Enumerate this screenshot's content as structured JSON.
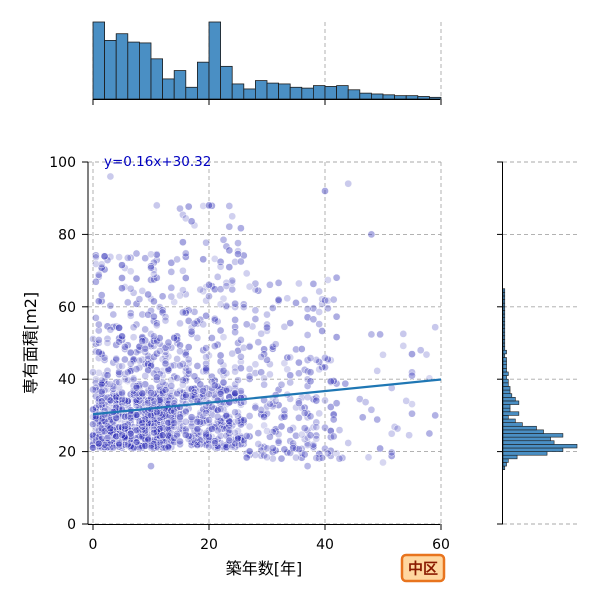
{
  "chart_data": {
    "type": "scatter",
    "xlabel": "築年数[年]",
    "ylabel": "専有面積[m2]",
    "xlim": [
      0,
      60
    ],
    "ylim": [
      0,
      100
    ],
    "xticks": [
      "0",
      "20",
      "40",
      "60"
    ],
    "yticks": [
      "0",
      "20",
      "40",
      "60",
      "80",
      "100"
    ],
    "grid": true,
    "regression": {
      "label": "y=0.16x+30.32",
      "slope": 0.16,
      "intercept": 30.32
    },
    "region_badge": "中区",
    "colors": {
      "points": "#2b2bb5",
      "hist": "#4a8fc4",
      "regression_line": "#1f77b4",
      "badge_fill": "#ffd7a0",
      "badge_stroke": "#e8741e"
    },
    "top_histogram": {
      "axis": "築年数[年]",
      "bin_width": 2,
      "counts": [
        92,
        70,
        78,
        68,
        67,
        48,
        24,
        34,
        14,
        44,
        92,
        39,
        18,
        12,
        22,
        19,
        18,
        14,
        13,
        16,
        15,
        16,
        11,
        7,
        6,
        5,
        4,
        4,
        3,
        2
      ]
    },
    "right_histogram": {
      "axis": "専有面積[m2]",
      "bin_width": 1,
      "bins_from": 15,
      "counts": [
        1,
        2,
        3,
        8,
        25,
        34,
        42,
        29,
        27,
        34,
        23,
        19,
        11,
        7,
        3,
        9,
        4,
        4,
        9,
        7,
        5,
        4,
        4,
        3,
        3,
        2,
        3,
        2,
        2,
        2,
        2,
        1,
        2,
        1,
        1,
        1,
        1,
        1,
        1,
        1,
        1,
        1,
        1,
        1,
        1,
        1,
        1,
        1,
        1,
        1
      ]
    },
    "scatter_clusters": [
      {
        "x": [
          0,
          14
        ],
        "y": [
          21,
          36
        ],
        "n": 520
      },
      {
        "x": [
          0,
          14
        ],
        "y": [
          36,
          50
        ],
        "n": 150
      },
      {
        "x": [
          0,
          14
        ],
        "y": [
          50,
          75
        ],
        "n": 110
      },
      {
        "x": [
          14,
          26
        ],
        "y": [
          21,
          38
        ],
        "n": 260
      },
      {
        "x": [
          14,
          26
        ],
        "y": [
          38,
          60
        ],
        "n": 90
      },
      {
        "x": [
          14,
          26
        ],
        "y": [
          60,
          88
        ],
        "n": 55
      },
      {
        "x": [
          26,
          42
        ],
        "y": [
          18,
          45
        ],
        "n": 160
      },
      {
        "x": [
          26,
          42
        ],
        "y": [
          45,
          70
        ],
        "n": 70
      },
      {
        "x": [
          42,
          60
        ],
        "y": [
          18,
          55
        ],
        "n": 35
      }
    ],
    "scatter_extremes": [
      [
        3,
        96
      ],
      [
        11,
        88
      ],
      [
        20,
        88
      ],
      [
        24,
        85
      ],
      [
        40,
        92
      ],
      [
        44,
        94
      ],
      [
        48,
        80
      ],
      [
        10,
        16
      ],
      [
        37,
        16
      ],
      [
        50,
        17
      ],
      [
        58,
        25
      ],
      [
        59,
        30
      ],
      [
        55,
        41
      ],
      [
        54,
        34
      ]
    ]
  }
}
